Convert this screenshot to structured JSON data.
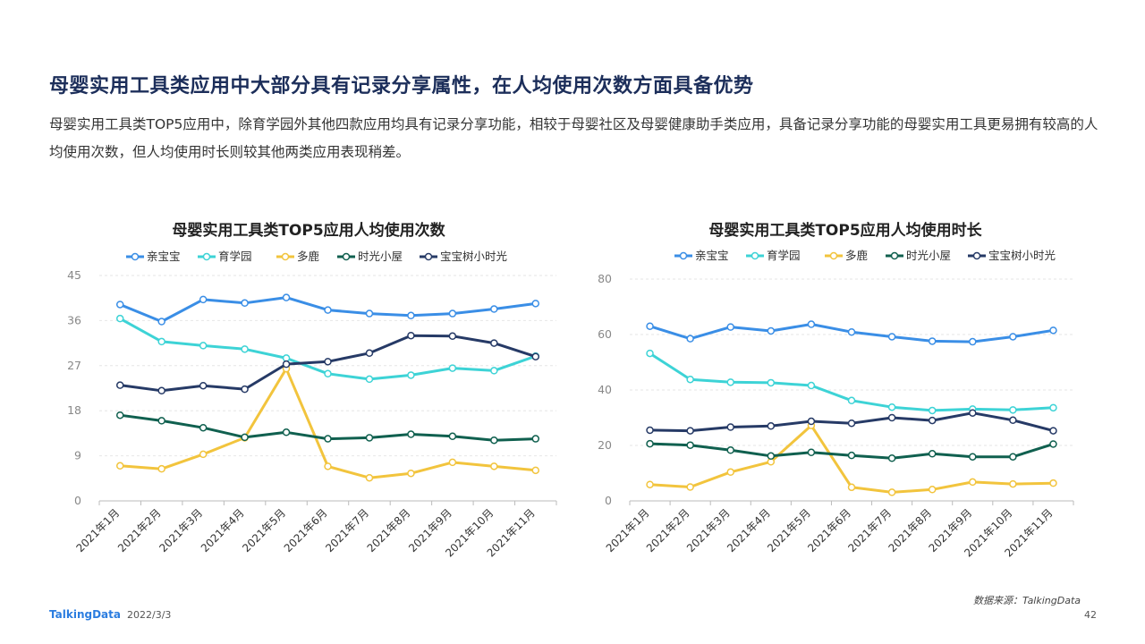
{
  "page": {
    "headline": "母婴实用工具类应用中大部分具有记录分享属性，在人均使用次数方面具备优势",
    "intro": "母婴实用工具类TOP5应用中，除育学园外其他四款应用均具有记录分享功能，相较于母婴社区及母婴健康助手类应用，具备记录分享功能的母婴实用工具更易拥有较高的人均使用次数，但人均使用时长则较其他两类应用表现稍差。",
    "source": "数据来源：TalkingData",
    "logo": "TalkingData",
    "date": "2022/3/3",
    "page_number": "42"
  },
  "chart_data": [
    {
      "type": "line",
      "title": "母婴实用工具类TOP5应用人均使用次数",
      "categories": [
        "2021年1月",
        "2021年2月",
        "2021年3月",
        "2021年4月",
        "2021年5月",
        "2021年6月",
        "2021年7月",
        "2021年8月",
        "2021年9月",
        "2021年10月",
        "2021年11月"
      ],
      "ylim": [
        0,
        45
      ],
      "yticks": [
        "0",
        "9",
        "18",
        "27",
        "36",
        "45"
      ],
      "grid": true,
      "legend_position": "top",
      "series": [
        {
          "name": "亲宝宝",
          "color": "#3a8ee6",
          "values": [
            39.2,
            35.8,
            40.2,
            39.5,
            40.6,
            38.1,
            37.4,
            37.0,
            37.4,
            38.3,
            39.4
          ]
        },
        {
          "name": "育学园",
          "color": "#3dd3d6",
          "values": [
            36.4,
            31.8,
            31.0,
            30.3,
            28.5,
            25.4,
            24.3,
            25.1,
            26.5,
            26.0,
            28.9
          ]
        },
        {
          "name": "多鹿",
          "color": "#f2c43d",
          "values": [
            7.0,
            6.4,
            9.3,
            12.6,
            26.4,
            6.9,
            4.6,
            5.5,
            7.7,
            6.9,
            6.1
          ]
        },
        {
          "name": "时光小屋",
          "color": "#10604f",
          "values": [
            17.1,
            16.0,
            14.6,
            12.7,
            13.7,
            12.4,
            12.6,
            13.3,
            12.9,
            12.1,
            12.4
          ]
        },
        {
          "name": "宝宝树小时光",
          "color": "#263a66",
          "values": [
            23.1,
            22.0,
            23.0,
            22.3,
            27.3,
            27.8,
            29.5,
            33.0,
            32.9,
            31.5,
            28.8
          ]
        }
      ]
    },
    {
      "type": "line",
      "title": "母婴实用工具类TOP5应用人均使用时长",
      "categories": [
        "2021年1月",
        "2021年2月",
        "2021年3月",
        "2021年4月",
        "2021年5月",
        "2021年6月",
        "2021年7月",
        "2021年8月",
        "2021年9月",
        "2021年10月",
        "2021年11月"
      ],
      "ylim": [
        0,
        80
      ],
      "yticks": [
        "0",
        "20",
        "40",
        "60",
        "80"
      ],
      "grid": true,
      "legend_position": "top",
      "series": [
        {
          "name": "亲宝宝",
          "color": "#3a8ee6",
          "values": [
            63.0,
            58.5,
            62.7,
            61.3,
            63.7,
            60.9,
            59.2,
            57.6,
            57.4,
            59.2,
            61.5
          ]
        },
        {
          "name": "育学园",
          "color": "#3dd3d6",
          "values": [
            53.2,
            43.8,
            42.8,
            42.6,
            41.6,
            36.2,
            33.8,
            32.6,
            33.1,
            32.8,
            33.6
          ]
        },
        {
          "name": "多鹿",
          "color": "#f2c43d",
          "values": [
            5.9,
            5.0,
            10.4,
            14.1,
            27.2,
            4.9,
            3.1,
            4.1,
            6.8,
            6.1,
            6.4
          ]
        },
        {
          "name": "时光小屋",
          "color": "#10604f",
          "values": [
            20.6,
            20.1,
            18.3,
            16.2,
            17.5,
            16.4,
            15.4,
            17.0,
            15.9,
            15.9,
            20.5
          ]
        },
        {
          "name": "宝宝树小时光",
          "color": "#263a66",
          "values": [
            25.5,
            25.3,
            26.6,
            27.0,
            28.7,
            28.0,
            30.0,
            29.0,
            31.7,
            29.1,
            25.3
          ]
        }
      ]
    }
  ]
}
